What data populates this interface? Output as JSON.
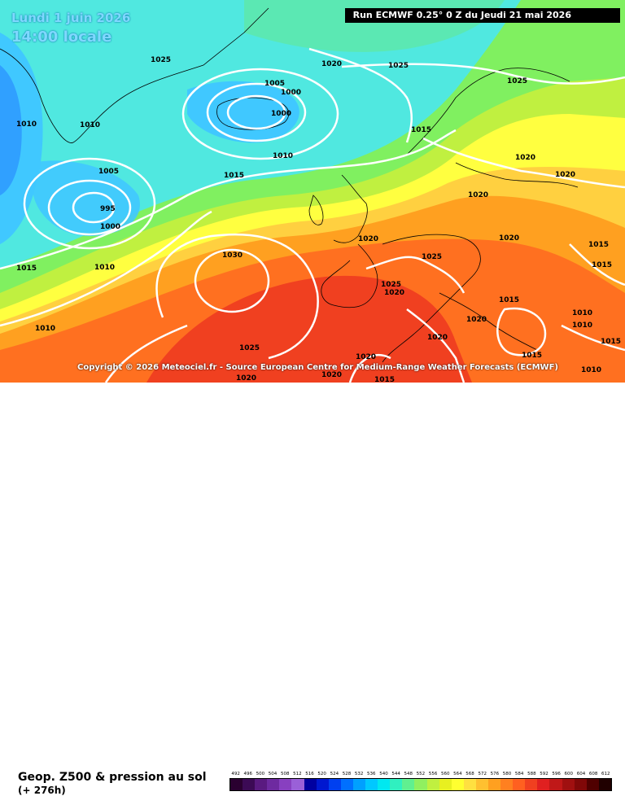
{
  "header": {
    "date_line": "Lundi 1 juin 2026",
    "time_line": "14:00 locale",
    "run_info": "Run ECMWF 0.25° 0 Z du Jeudi 21 mai 2026"
  },
  "copyright": "Copyright © 2026 Meteociel.fr - Source European Centre for Medium-Range Weather Forecasts (ECMWF)",
  "footer": {
    "title": "Geop. Z500 & pression au sol",
    "subtitle": "(+ 276h)"
  },
  "scale": {
    "ticks": [
      "492",
      "496",
      "500",
      "504",
      "508",
      "512",
      "516",
      "520",
      "524",
      "528",
      "532",
      "536",
      "540",
      "544",
      "548",
      "552",
      "556",
      "560",
      "564",
      "568",
      "572",
      "576",
      "580",
      "584",
      "588",
      "592",
      "596",
      "600",
      "604",
      "608",
      "612"
    ],
    "colors": [
      "#2a0030",
      "#3c0a55",
      "#5a1a80",
      "#6e2aa0",
      "#8840c0",
      "#9a60d8",
      "#0000a0",
      "#0018d0",
      "#0040f0",
      "#0070ff",
      "#00a0ff",
      "#00c8ff",
      "#00e8f0",
      "#30f0c0",
      "#60f090",
      "#90f060",
      "#c0f040",
      "#e8f020",
      "#ffff30",
      "#ffe040",
      "#ffc030",
      "#ffa020",
      "#ff8020",
      "#ff6020",
      "#f04020",
      "#e02020",
      "#c01818",
      "#a01010",
      "#800808",
      "#500000",
      "#200000"
    ]
  },
  "map": {
    "colors": {
      "deep_blue": "#30a0ff",
      "light_blue": "#40c8ff",
      "cyan": "#50e8e0",
      "green": "#80f060",
      "yellow_green": "#c0f040",
      "yellow": "#ffff40",
      "light_orange": "#ffd040",
      "orange": "#ffa020",
      "dark_orange": "#ff7020",
      "red": "#f04020",
      "isobar": "#ffffff",
      "coast": "#000000"
    },
    "isobar_labels": [
      "1025",
      "1020",
      "1025",
      "1025",
      "1005",
      "1000",
      "1000",
      "1010",
      "1010",
      "1015",
      "1010",
      "1020",
      "1020",
      "1005",
      "995",
      "1000",
      "1015",
      "1015",
      "1010",
      "1030",
      "1010",
      "1025",
      "1020",
      "1020",
      "1025",
      "1020",
      "1015",
      "1015",
      "1020",
      "1015",
      "1025",
      "1020",
      "1020",
      "1015",
      "1010",
      "1010",
      "1020",
      "1020",
      "1015",
      "1015",
      "1010",
      "1020"
    ]
  }
}
